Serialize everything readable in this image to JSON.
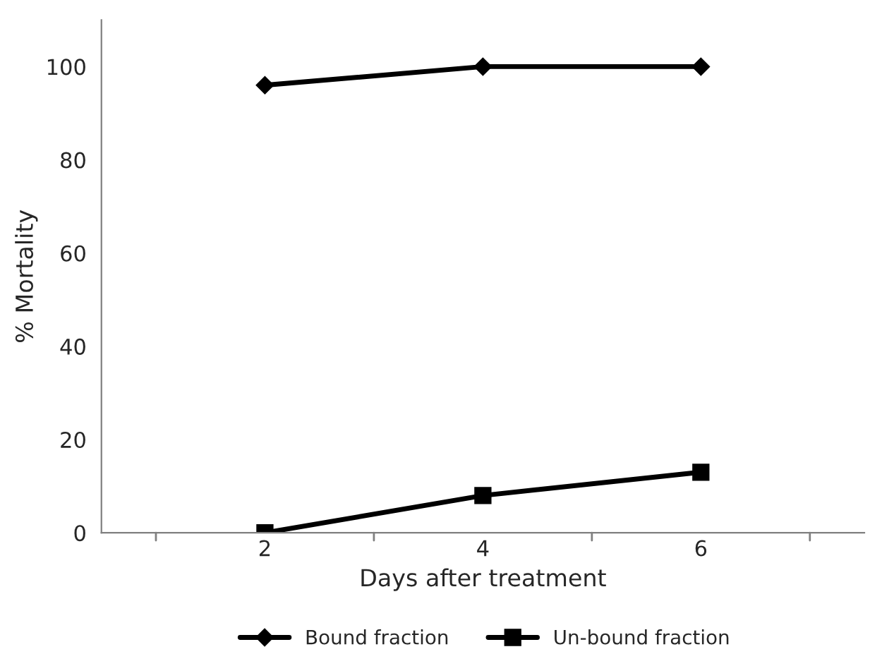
{
  "chart_data": {
    "type": "line",
    "xlabel": "Days after treatment",
    "ylabel": "% Mortality",
    "categories": [
      "2",
      "4",
      "6"
    ],
    "series": [
      {
        "name": "Bound fraction",
        "color": "#000000",
        "marker": "diamond",
        "values": [
          96,
          100,
          100
        ]
      },
      {
        "name": "Un-bound fraction",
        "color": "#000000",
        "marker": "square",
        "values": [
          0,
          8,
          13
        ]
      }
    ],
    "ylim": [
      0,
      110
    ],
    "yticks": [
      0,
      20,
      40,
      60,
      80,
      100
    ],
    "legend": "bottom",
    "grid": false,
    "line_style": "solid"
  }
}
